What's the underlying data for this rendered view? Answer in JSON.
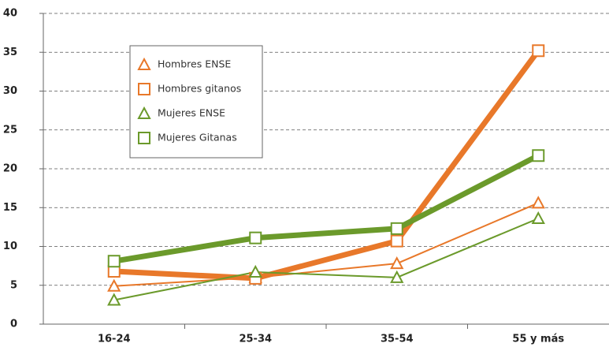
{
  "chart_data": {
    "type": "line",
    "categories": [
      "16-24",
      "25-34",
      "35-54",
      "55 y más"
    ],
    "series": [
      {
        "name": "Hombres ENSE",
        "color": "#e8782a",
        "marker": "triangle",
        "linewidth": 2,
        "values": [
          4.9,
          6.0,
          7.8,
          15.6
        ]
      },
      {
        "name": "Hombres gitanos",
        "color": "#e8782a",
        "marker": "square",
        "linewidth": 7,
        "values": [
          6.8,
          5.9,
          10.7,
          35.2
        ]
      },
      {
        "name": "Mujeres ENSE",
        "color": "#6b9a2b",
        "marker": "triangle",
        "linewidth": 2,
        "values": [
          3.1,
          6.7,
          6.0,
          13.6
        ]
      },
      {
        "name": "Mujeres Gitanas",
        "color": "#6b9a2b",
        "marker": "square",
        "linewidth": 7,
        "values": [
          8.1,
          11.1,
          12.3,
          21.7
        ]
      }
    ],
    "ylim": [
      0,
      40
    ],
    "yticks": [
      0,
      5,
      10,
      15,
      20,
      25,
      30,
      35,
      40
    ],
    "grid": true,
    "legend": "upper left"
  }
}
